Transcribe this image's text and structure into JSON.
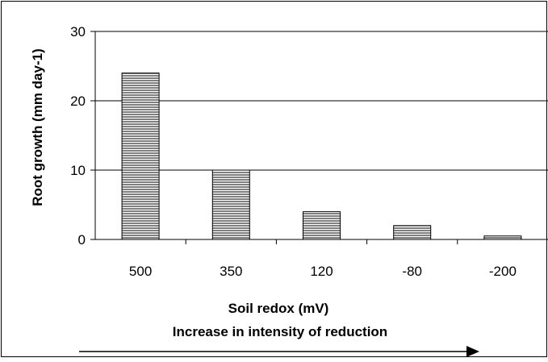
{
  "chart_data": {
    "type": "bar",
    "title": "",
    "xlabel": "Soil redox (mV)",
    "ylabel": "Root growth (mm day-1)",
    "annotation": "Increase in intensity of reduction",
    "categories": [
      "500",
      "350",
      "120",
      "-80",
      "-200"
    ],
    "values": [
      24,
      10,
      4,
      2,
      0.5
    ],
    "ylim": [
      0,
      30
    ],
    "yticks": [
      "0",
      "10",
      "20",
      "30"
    ],
    "grid": true,
    "legend": "none",
    "bar_fill": "horizontal-hatch",
    "colors": {
      "bar_stroke": "#000000",
      "hatch": "#000000",
      "background": "#ffffff"
    }
  }
}
